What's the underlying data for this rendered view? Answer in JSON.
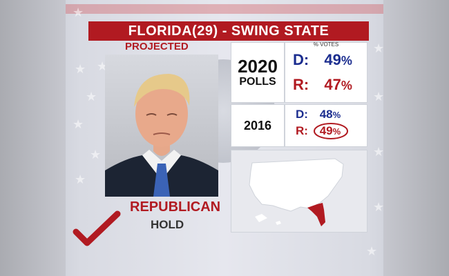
{
  "graphic": {
    "title_state": "FLORIDA",
    "title_votes": "(29)",
    "title_label": "- SWING STATE",
    "projection": "PROJECTED",
    "result_party": "REPUBLICAN",
    "result_status": "HOLD"
  },
  "polls": {
    "header": "% VOTES",
    "rows": [
      {
        "year": "2020",
        "sublabel": "POLLS",
        "d_label": "D:",
        "d_value": "49",
        "r_label": "R:",
        "r_value": "47",
        "pct": "%"
      },
      {
        "year": "2016",
        "d_label": "D:",
        "d_value": "48",
        "r_label": "R:",
        "r_value": "49",
        "pct": "%",
        "r_value_circled": true
      }
    ]
  },
  "map": {
    "highlight_state": "Florida",
    "highlight_color": "#b11a21",
    "base_color": "#ffffff"
  },
  "colors": {
    "democrat": "#1b2d8f",
    "republican": "#b11a21",
    "title_bar": "#b11a21"
  },
  "icons": {
    "check": "checkmark-icon",
    "seal": "presidential-seal-icon",
    "portrait": "candidate-portrait"
  }
}
